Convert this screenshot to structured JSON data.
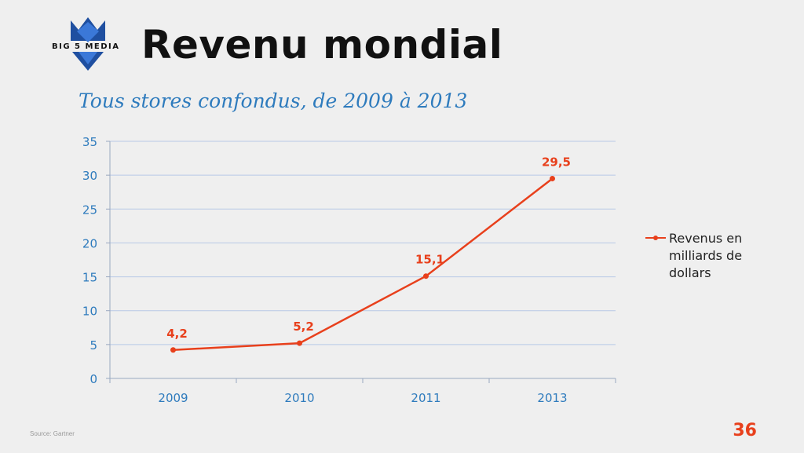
{
  "brand": {
    "logo_text": "BIG 5 MEDIA"
  },
  "slide": {
    "title": "Revenu mondial",
    "subtitle": "Tous stores confondus, de 2009 à 2013",
    "source": "Source: Gartner",
    "page_number": "36"
  },
  "colors": {
    "series": "#e8401c",
    "axis_labels": "#2e7bbd",
    "grid": "#b8c9e6"
  },
  "chart_data": {
    "type": "line",
    "title": "",
    "xlabel": "",
    "ylabel": "",
    "categories": [
      "2009",
      "2010",
      "2011",
      "2013"
    ],
    "series": [
      {
        "name": "Revenus en milliards de dollars",
        "values": [
          4.2,
          5.2,
          15.1,
          29.5
        ]
      }
    ],
    "data_labels": [
      "4,2",
      "5,2",
      "15,1",
      "29,5"
    ],
    "y_ticks": [
      "0",
      "5",
      "10",
      "15",
      "20",
      "25",
      "30",
      "35"
    ],
    "ylim": [
      0,
      35
    ],
    "grid": true,
    "legend": "right"
  }
}
